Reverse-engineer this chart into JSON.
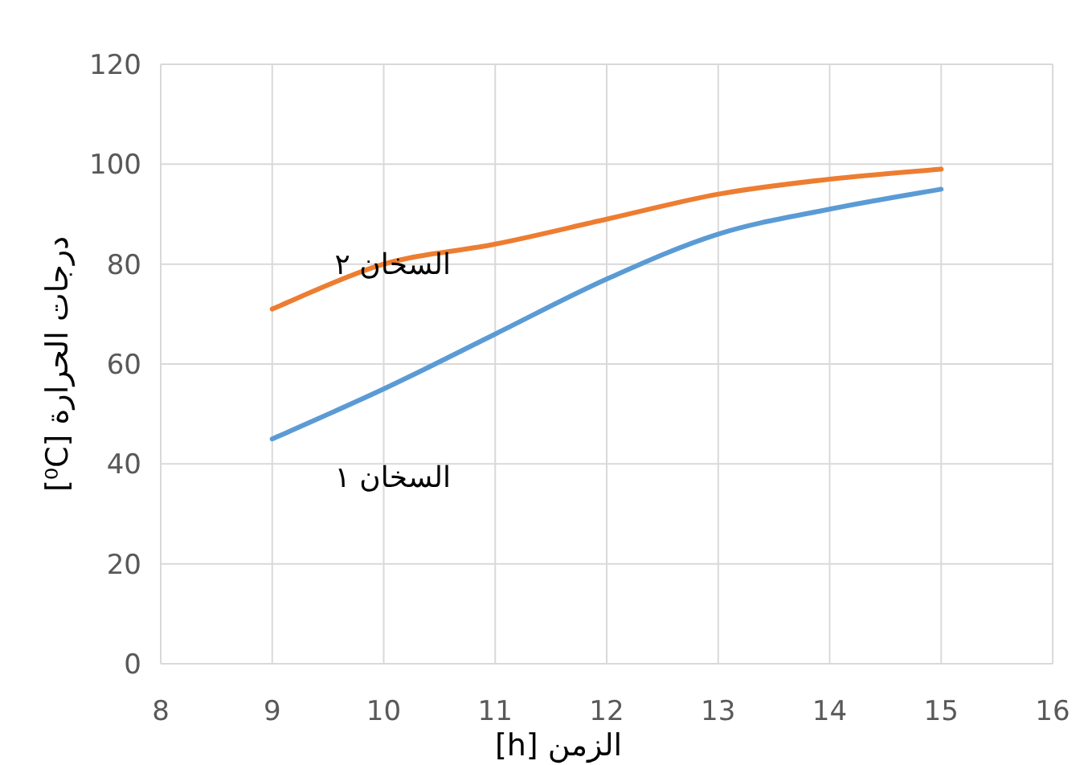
{
  "chart_data": {
    "type": "line",
    "xlabel": "الزمن [h]",
    "ylabel": "درجات الحرارة  [⁰C]",
    "x": [
      9,
      10,
      11,
      12,
      13,
      14,
      15
    ],
    "series": [
      {
        "name": "السخان ١",
        "color": "#5b9bd5",
        "values": [
          45,
          55,
          66,
          77,
          86,
          91,
          95
        ]
      },
      {
        "name": "السخان ٢",
        "color": "#ed7d31",
        "values": [
          71,
          80,
          84,
          89,
          94,
          97,
          99
        ]
      }
    ],
    "xlim": [
      8,
      16
    ],
    "xticks": [
      8,
      9,
      10,
      11,
      12,
      13,
      14,
      15,
      16
    ],
    "ylim": [
      0,
      120
    ],
    "yticks": [
      0,
      20,
      40,
      60,
      80,
      100,
      120
    ],
    "grid": true,
    "marker": "none",
    "line_style": "solid"
  }
}
